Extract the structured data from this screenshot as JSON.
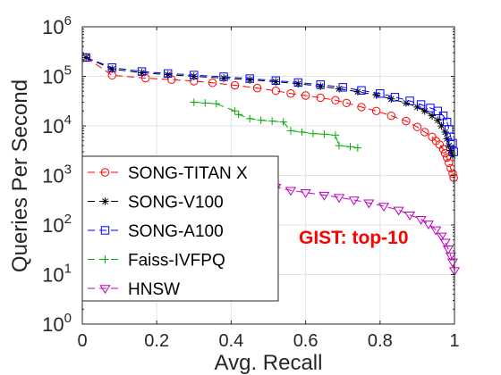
{
  "chart_data": {
    "type": "line",
    "title": "",
    "xlabel": "Avg. Recall",
    "ylabel": "Queries Per Second",
    "annotation": "GIST: top-10",
    "annotation_color": "#ff0000",
    "xlim": [
      0,
      1
    ],
    "ylim_log10": [
      0,
      6
    ],
    "y_scale": "log",
    "x_ticks": [
      0,
      0.2,
      0.4,
      0.6,
      0.8,
      1
    ],
    "x_tick_labels": [
      "0",
      "0.2",
      "0.4",
      "0.6",
      "0.8",
      "1"
    ],
    "y_ticks_exp": [
      0,
      1,
      2,
      3,
      4,
      5,
      6
    ],
    "y_tick_base": "10",
    "grid": true,
    "legend_position": "left",
    "series": [
      {
        "name": "SONG-TITAN X",
        "color": "#ff0000",
        "marker": "circle",
        "dash": "8,5",
        "points": [
          [
            0.01,
            240000
          ],
          [
            0.08,
            105000
          ],
          [
            0.17,
            92000
          ],
          [
            0.24,
            86000
          ],
          [
            0.3,
            80000
          ],
          [
            0.35,
            74000
          ],
          [
            0.41,
            66000
          ],
          [
            0.47,
            58000
          ],
          [
            0.52,
            51000
          ],
          [
            0.56,
            45000
          ],
          [
            0.6,
            41000
          ],
          [
            0.64,
            37000
          ],
          [
            0.68,
            33000
          ],
          [
            0.71,
            29000
          ],
          [
            0.75,
            24000
          ],
          [
            0.79,
            20000
          ],
          [
            0.83,
            16000
          ],
          [
            0.87,
            12500
          ],
          [
            0.9,
            9500
          ],
          [
            0.92,
            7500
          ],
          [
            0.94,
            6000
          ],
          [
            0.95,
            5000
          ],
          [
            0.96,
            4200
          ],
          [
            0.97,
            3400
          ],
          [
            0.975,
            2800
          ],
          [
            0.98,
            2300
          ],
          [
            0.985,
            1800
          ],
          [
            0.99,
            1400
          ],
          [
            0.995,
            1100
          ],
          [
            0.998,
            900
          ]
        ]
      },
      {
        "name": "SONG-V100",
        "color": "#000000",
        "marker": "star",
        "dash": "8,5",
        "points": [
          [
            0.01,
            240000
          ],
          [
            0.08,
            140000
          ],
          [
            0.16,
            118000
          ],
          [
            0.23,
            108000
          ],
          [
            0.3,
            100000
          ],
          [
            0.38,
            92000
          ],
          [
            0.45,
            85000
          ],
          [
            0.52,
            78000
          ],
          [
            0.58,
            71000
          ],
          [
            0.64,
            63000
          ],
          [
            0.69,
            56000
          ],
          [
            0.74,
            49000
          ],
          [
            0.79,
            42000
          ],
          [
            0.83,
            35000
          ],
          [
            0.87,
            29000
          ],
          [
            0.9,
            24000
          ],
          [
            0.92,
            20000
          ],
          [
            0.94,
            16000
          ],
          [
            0.955,
            13000
          ],
          [
            0.965,
            10000
          ],
          [
            0.975,
            7500
          ],
          [
            0.98,
            5500
          ],
          [
            0.985,
            4000
          ],
          [
            0.99,
            3200
          ],
          [
            0.995,
            2500
          ]
        ]
      },
      {
        "name": "SONG-A100",
        "color": "#0000ff",
        "marker": "square",
        "dash": "8,5",
        "points": [
          [
            0.01,
            240000
          ],
          [
            0.08,
            150000
          ],
          [
            0.16,
            125000
          ],
          [
            0.23,
            114000
          ],
          [
            0.3,
            106000
          ],
          [
            0.38,
            98000
          ],
          [
            0.45,
            90000
          ],
          [
            0.52,
            82000
          ],
          [
            0.58,
            75000
          ],
          [
            0.64,
            68000
          ],
          [
            0.7,
            60000
          ],
          [
            0.75,
            52000
          ],
          [
            0.8,
            45000
          ],
          [
            0.84,
            38000
          ],
          [
            0.88,
            32000
          ],
          [
            0.91,
            27000
          ],
          [
            0.935,
            23000
          ],
          [
            0.955,
            20000
          ],
          [
            0.97,
            16000
          ],
          [
            0.98,
            12000
          ],
          [
            0.985,
            8500
          ],
          [
            0.99,
            6000
          ],
          [
            0.995,
            4500
          ],
          [
            0.998,
            3000
          ]
        ]
      },
      {
        "name": "Faiss-IVFPQ",
        "color": "#00aa00",
        "marker": "plus",
        "dash": "8,5",
        "points": [
          [
            0.3,
            30000
          ],
          [
            0.33,
            29000
          ],
          [
            0.36,
            28000
          ],
          [
            0.41,
            20000
          ],
          [
            0.42,
            17000
          ],
          [
            0.45,
            14000
          ],
          [
            0.48,
            13000
          ],
          [
            0.51,
            12500
          ],
          [
            0.54,
            12000
          ],
          [
            0.56,
            8000
          ],
          [
            0.59,
            7500
          ],
          [
            0.62,
            7000
          ],
          [
            0.65,
            6800
          ],
          [
            0.68,
            6500
          ],
          [
            0.69,
            4000
          ],
          [
            0.72,
            3800
          ],
          [
            0.74,
            3600
          ]
        ]
      },
      {
        "name": "HNSW",
        "color": "#c000c0",
        "marker": "triangle-down",
        "dash": "8,5",
        "points": [
          [
            0.02,
            1900
          ],
          [
            0.08,
            1850
          ],
          [
            0.14,
            1800
          ],
          [
            0.2,
            1500
          ],
          [
            0.27,
            1100
          ],
          [
            0.35,
            880
          ],
          [
            0.41,
            800
          ],
          [
            0.47,
            680
          ],
          [
            0.52,
            580
          ],
          [
            0.56,
            500
          ],
          [
            0.6,
            450
          ],
          [
            0.65,
            400
          ],
          [
            0.69,
            360
          ],
          [
            0.73,
            320
          ],
          [
            0.77,
            280
          ],
          [
            0.81,
            240
          ],
          [
            0.85,
            200
          ],
          [
            0.88,
            160
          ],
          [
            0.91,
            130
          ],
          [
            0.93,
            105
          ],
          [
            0.95,
            80
          ],
          [
            0.965,
            60
          ],
          [
            0.975,
            45
          ],
          [
            0.983,
            33
          ],
          [
            0.99,
            24
          ],
          [
            0.995,
            18
          ],
          [
            1.0,
            12
          ]
        ]
      }
    ]
  }
}
